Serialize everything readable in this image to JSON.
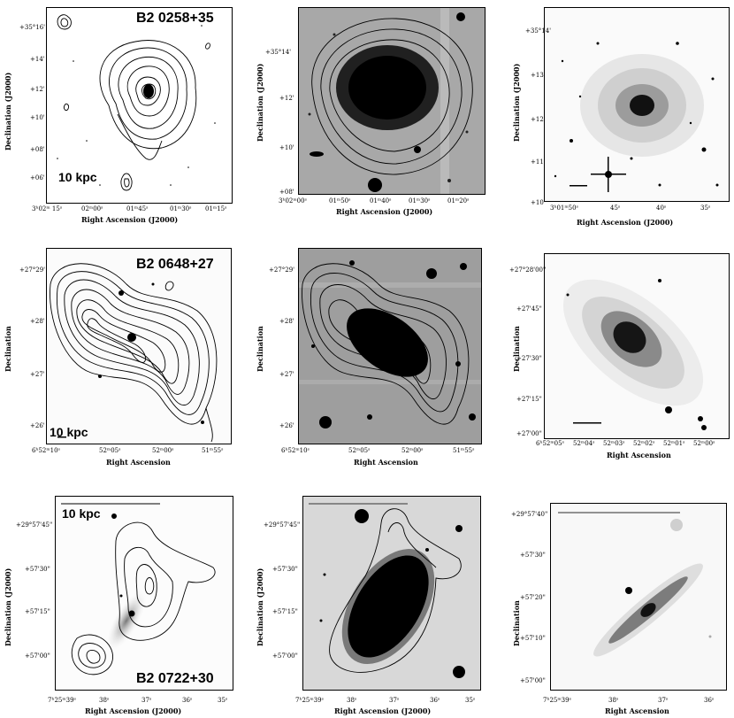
{
  "rows": [
    {
      "source": "B2 0258+35",
      "scale": "10 kpc",
      "xlabel_j2000": "Right Ascension (J2000)",
      "ylabel_j2000": "Declination (J2000)",
      "left_x_ticks": [
        "3ʰ02ᵐ 15ˢ",
        "02ᵐ00ˢ",
        "01ᵐ45ˢ",
        "01ᵐ30ˢ",
        "01ᵐ15ˢ"
      ],
      "left_y_ticks": [
        "+35°16'",
        "+14'",
        "+12'",
        "+10'",
        "+08'",
        "+06'"
      ],
      "mid_x_ticks": [
        "3ʰ02ᵐ00ˢ",
        "01ᵐ50ˢ",
        "01ᵐ40ˢ",
        "01ᵐ30ˢ",
        "01ᵐ20ˢ"
      ],
      "mid_y_ticks": [
        "+35°14'",
        "+12'",
        "+10'",
        "+08'"
      ],
      "right_x_ticks": [
        "3ʰ01ᵐ50ˢ",
        "45ˢ",
        "40ˢ",
        "35ˢ"
      ],
      "right_y_ticks": [
        "+35°14'",
        "+13'",
        "+12'",
        "+11'",
        "+10'"
      ]
    },
    {
      "source": "B2 0648+27",
      "scale": "10 kpc",
      "xlabel": "Right Ascension",
      "ylabel": "Declination",
      "left_x_ticks": [
        "6ʰ52ᵐ10ˢ",
        "52ᵐ05ˢ",
        "52ᵐ00ˢ",
        "51ᵐ55ˢ"
      ],
      "left_y_ticks": [
        "+27°29'",
        "+28'",
        "+27'",
        "+26'"
      ],
      "right_x_ticks": [
        "6ʰ52ᵐ05ˢ",
        "52ᵐ04ˢ",
        "52ᵐ03ˢ",
        "52ᵐ02ˢ",
        "52ᵐ01ˢ",
        "52ᵐ00ˢ"
      ],
      "right_y_ticks": [
        "+27°28'00\"",
        "+27'45\"",
        "+27'30\"",
        "+27'15\"",
        "+27'00\""
      ]
    },
    {
      "source": "B2 0722+30",
      "scale": "10 kpc",
      "xlabel_j2000": "Right Ascension (J2000)",
      "ylabel_j2000": "Declination (J2000)",
      "xlabel": "Right Ascension",
      "ylabel": "Declination",
      "left_x_ticks": [
        "7ʰ25ᵐ39ˢ",
        "38ˢ",
        "37ˢ",
        "36ˢ",
        "35ˢ"
      ],
      "left_y_ticks": [
        "+29°57'45\"",
        "+57'30\"",
        "+57'15\"",
        "+57'00\""
      ],
      "right_x_ticks": [
        "7ʰ25ᵐ39ˢ",
        "38ˢ",
        "37ˢ",
        "36ˢ"
      ],
      "right_y_ticks": [
        "+29°57'40\"",
        "+57'30\"",
        "+57'20\"",
        "+57'10\"",
        "+57'00\""
      ]
    }
  ]
}
